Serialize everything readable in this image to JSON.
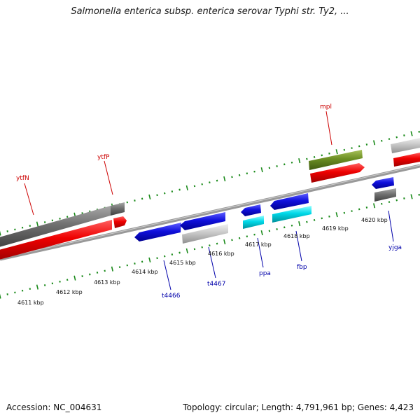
{
  "header": {
    "title": "Salmonella enterica subsp. enterica serovar Typhi str. Ty2, ..."
  },
  "footer": {
    "accession": "Accession: NC_004631",
    "summary": "Topology: circular; Length: 4,791,961 bp; Genes: 4,423"
  },
  "scale_labels": [
    "4611 kbp",
    "4612 kbp",
    "4613 kbp",
    "4614 kbp",
    "4615 kbp",
    "4616 kbp",
    "4617 kbp",
    "4618 kbp",
    "4619 kbp",
    "4620 kbp"
  ],
  "gene_labels_top": [
    "ytfN",
    "ytfP",
    "mpl"
  ],
  "gene_labels_bottom": [
    "t4466",
    "t4467",
    "ppa",
    "fbp",
    "yjga"
  ],
  "colors": {
    "forward_cds": "#ee0000",
    "reverse_cds": "#1010dd",
    "rna": "#00d8e8",
    "gray": "#6e6e6e",
    "olive": "#6b8e23",
    "light_gray": "#c8c8c8",
    "tick": "#1a8a1a",
    "backbone": "#888888"
  }
}
